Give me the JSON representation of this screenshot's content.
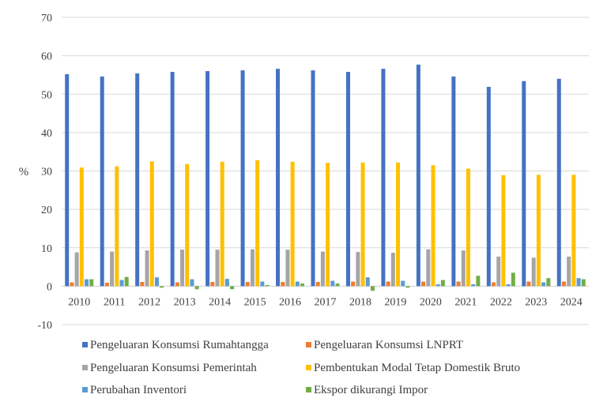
{
  "chart_data": {
    "type": "bar",
    "ylabel": "%",
    "ylim": [
      -10,
      70
    ],
    "yticks": [
      -10,
      0,
      10,
      20,
      30,
      40,
      50,
      60,
      70
    ],
    "grid": true,
    "legend_position": "bottom",
    "categories": [
      "2010",
      "2011",
      "2012",
      "2013",
      "2014",
      "2015",
      "2016",
      "2017",
      "2018",
      "2019",
      "2020",
      "2021",
      "2022",
      "2023",
      "2024"
    ],
    "series": [
      {
        "name": "Pengeluaran Konsumsi Rumahtangga",
        "color": "#4472C4",
        "values": [
          55.2,
          54.6,
          55.4,
          55.8,
          56.0,
          56.2,
          56.6,
          56.2,
          55.8,
          56.6,
          57.7,
          54.6,
          51.9,
          53.4,
          54.0
        ]
      },
      {
        "name": "Pengeluaran Konsumsi LNPRT",
        "color": "#ED7D31",
        "values": [
          1.0,
          0.9,
          1.1,
          1.0,
          1.1,
          1.1,
          1.1,
          1.1,
          1.2,
          1.2,
          1.2,
          1.2,
          1.0,
          1.2,
          1.2
        ]
      },
      {
        "name": "Pengeluaran Konsumsi Pemerintah",
        "color": "#A5A5A5",
        "values": [
          8.8,
          9.0,
          9.3,
          9.5,
          9.5,
          9.6,
          9.5,
          9.0,
          8.9,
          8.7,
          9.6,
          9.3,
          7.7,
          7.4,
          7.7
        ]
      },
      {
        "name": "Pembentukan Modal Tetap Domestik Bruto",
        "color": "#FFC000",
        "values": [
          30.9,
          31.2,
          32.5,
          31.8,
          32.4,
          32.8,
          32.4,
          32.1,
          32.2,
          32.2,
          31.5,
          30.6,
          28.9,
          29.0,
          29.0
        ]
      },
      {
        "name": "Perubahan Inventori",
        "color": "#5B9BD5",
        "values": [
          1.8,
          1.6,
          2.3,
          1.8,
          1.9,
          1.2,
          1.2,
          1.4,
          2.3,
          1.4,
          0.5,
          0.5,
          0.5,
          1.0,
          2.1
        ]
      },
      {
        "name": "Ekspor dikurangi Impor",
        "color": "#70AD47",
        "values": [
          1.8,
          2.4,
          -0.4,
          -0.8,
          -0.8,
          0.3,
          0.7,
          0.7,
          -1.2,
          -0.4,
          1.6,
          2.7,
          3.5,
          2.1,
          1.8
        ]
      }
    ]
  }
}
